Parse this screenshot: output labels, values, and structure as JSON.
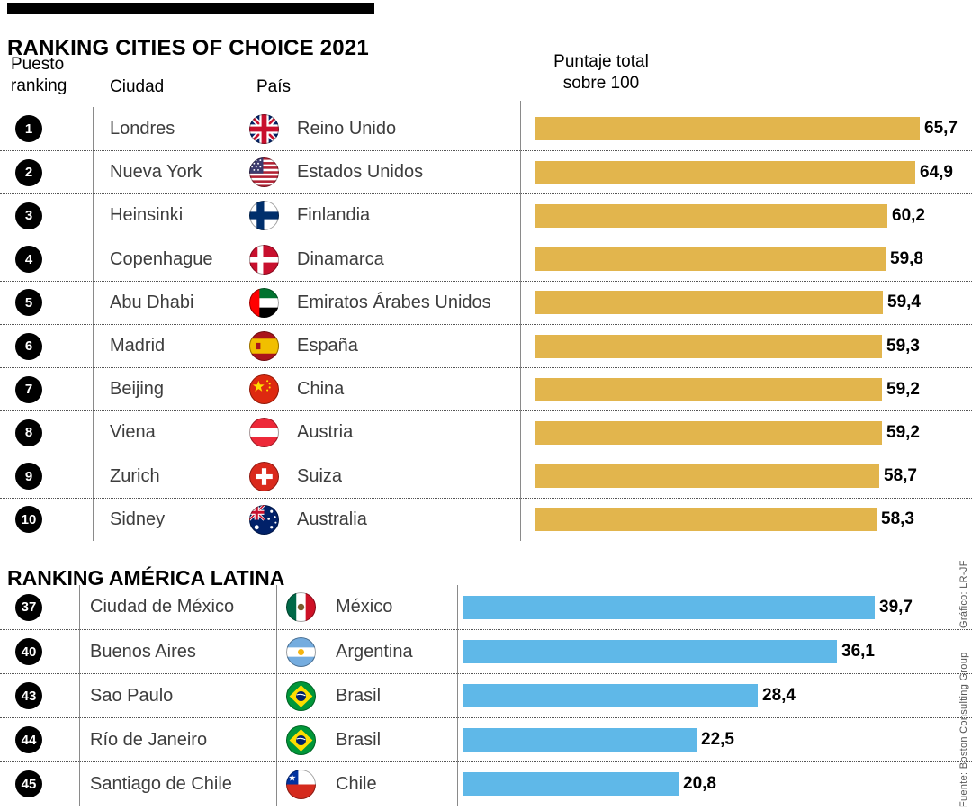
{
  "page": {
    "background": "#ffffff"
  },
  "header": {
    "rank_line1": "Puesto",
    "rank_line2": "ranking",
    "city": "Ciudad",
    "country": "País",
    "score_line1": "Puntaje total",
    "score_line2": "sobre 100"
  },
  "credits": {
    "grafico": "Gráfico: LR-JF",
    "fuente": "Fuente: Boston Consulting Group"
  },
  "chart_data": {
    "type": "bar",
    "title": "RANKING CITIES OF CHOICE 2021",
    "xlabel": "Puntaje total sobre 100",
    "xlim": [
      0,
      100
    ],
    "legend": "none",
    "sections": [
      {
        "title": "",
        "bar_color": "#e2b54d",
        "rows": [
          {
            "rank": "1",
            "city": "Londres",
            "flag": "uk",
            "country": "Reino Unido",
            "value": 65.7,
            "value_label": "65,7"
          },
          {
            "rank": "2",
            "city": "Nueva York",
            "flag": "us",
            "country": "Estados Unidos",
            "value": 64.9,
            "value_label": "64,9"
          },
          {
            "rank": "3",
            "city": "Heinsinki",
            "flag": "fi",
            "country": "Finlandia",
            "value": 60.2,
            "value_label": "60,2"
          },
          {
            "rank": "4",
            "city": "Copenhague",
            "flag": "dk",
            "country": "Dinamarca",
            "value": 59.8,
            "value_label": "59,8"
          },
          {
            "rank": "5",
            "city": "Abu Dhabi",
            "flag": "ae",
            "country": "Emiratos Árabes Unidos",
            "value": 59.4,
            "value_label": "59,4"
          },
          {
            "rank": "6",
            "city": "Madrid",
            "flag": "es",
            "country": "España",
            "value": 59.3,
            "value_label": "59,3"
          },
          {
            "rank": "7",
            "city": "Beijing",
            "flag": "cn",
            "country": "China",
            "value": 59.2,
            "value_label": "59,2"
          },
          {
            "rank": "8",
            "city": "Viena",
            "flag": "at",
            "country": "Austria",
            "value": 59.2,
            "value_label": "59,2"
          },
          {
            "rank": "9",
            "city": "Zurich",
            "flag": "ch",
            "country": "Suiza",
            "value": 58.7,
            "value_label": "58,7"
          },
          {
            "rank": "10",
            "city": "Sidney",
            "flag": "au",
            "country": "Australia",
            "value": 58.3,
            "value_label": "58,3"
          }
        ]
      },
      {
        "title": "RANKING AMÉRICA LATINA",
        "bar_color": "#5fb8e8",
        "rows": [
          {
            "rank": "37",
            "city": "Ciudad de México",
            "flag": "mx",
            "country": "México",
            "value": 39.7,
            "value_label": "39,7"
          },
          {
            "rank": "40",
            "city": "Buenos Aires",
            "flag": "ar",
            "country": "Argentina",
            "value": 36.1,
            "value_label": "36,1"
          },
          {
            "rank": "43",
            "city": "Sao Paulo",
            "flag": "br",
            "country": "Brasil",
            "value": 28.4,
            "value_label": "28,4"
          },
          {
            "rank": "44",
            "city": "Río de Janeiro",
            "flag": "br",
            "country": "Brasil",
            "value": 22.5,
            "value_label": "22,5"
          },
          {
            "rank": "45",
            "city": "Santiago de Chile",
            "flag": "cl",
            "country": "Chile",
            "value": 20.8,
            "value_label": "20,8"
          }
        ]
      }
    ]
  }
}
